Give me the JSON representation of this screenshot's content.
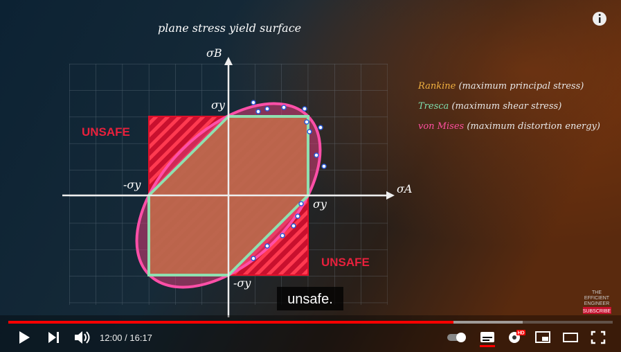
{
  "video": {
    "title": "plane stress yield surface",
    "axes": {
      "x_label": "σA",
      "y_label": "σB",
      "pos_x": "σy",
      "neg_x": "-σy",
      "pos_y": "σy",
      "neg_y": "-σy"
    },
    "unsafe_labels": [
      "UNSAFE",
      "UNSAFE"
    ],
    "legend": [
      {
        "name": "Rankine",
        "desc": "(maximum principal stress)"
      },
      {
        "name": "Tresca",
        "desc": "(maximum shear stress)"
      },
      {
        "name": "von Mises",
        "desc": "(maximum distortion energy)"
      }
    ],
    "caption": "unsafe.",
    "brand": [
      "THE",
      "EFFICIENT",
      "ENGINEER"
    ],
    "subscribe": "SUBSCRIBE"
  },
  "player": {
    "time": "12:00 / 16:17",
    "hd": "HD"
  }
}
